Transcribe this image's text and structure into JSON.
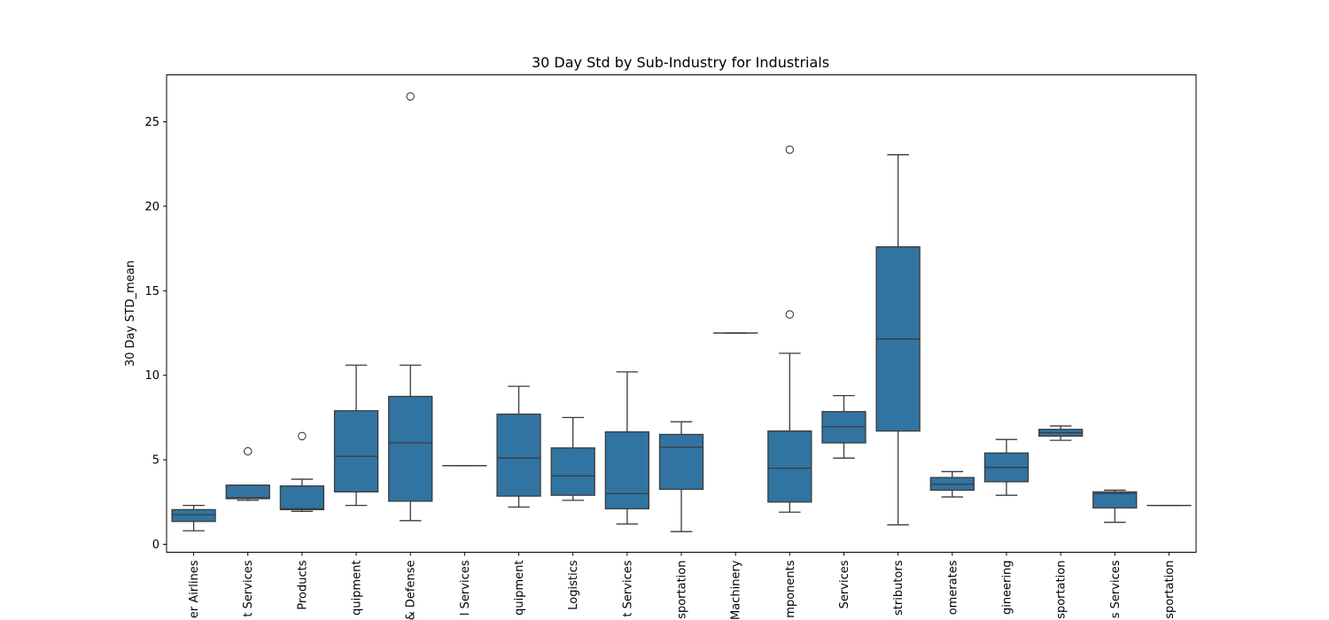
{
  "chart_data": {
    "type": "box",
    "title": "30 Day Std by Sub-Industry for Industrials",
    "xlabel": "",
    "ylabel": "30 Day STD_mean",
    "ylim": [
      -0.5,
      27.5
    ],
    "yticks": [
      0,
      5,
      10,
      15,
      20,
      25
    ],
    "grid": false,
    "legend": "none",
    "box_color": "#3274a1",
    "line_color": "#3b3b3b",
    "categories": [
      "er Airlines",
      "t Services",
      "Products",
      "quipment",
      "& Defense",
      "l Services",
      "quipment",
      "Logistics",
      "t Services",
      "sportation",
      "Machinery",
      "mponents",
      "Services",
      "stributors",
      "omerates",
      "gineering",
      "sportation",
      "s Services",
      "sportation"
    ],
    "boxes": [
      {
        "whislo": 0.8,
        "q1": 1.35,
        "med": 1.75,
        "q3": 2.05,
        "whishi": 2.3,
        "fliers": []
      },
      {
        "whislo": 2.6,
        "q1": 2.7,
        "med": 2.75,
        "q3": 3.5,
        "whishi": 3.5,
        "fliers": [
          5.5
        ]
      },
      {
        "whislo": 1.95,
        "q1": 2.05,
        "med": 2.1,
        "q3": 3.45,
        "whishi": 3.85,
        "fliers": [
          6.4
        ]
      },
      {
        "whislo": 2.3,
        "q1": 3.1,
        "med": 5.2,
        "q3": 7.9,
        "whishi": 10.6,
        "fliers": []
      },
      {
        "whislo": 1.4,
        "q1": 2.55,
        "med": 6.0,
        "q3": 8.75,
        "whishi": 10.6,
        "fliers": [
          26.5
        ]
      },
      {
        "whislo": 4.65,
        "q1": 4.65,
        "med": 4.65,
        "q3": 4.65,
        "whishi": 4.65,
        "fliers": []
      },
      {
        "whislo": 2.2,
        "q1": 2.85,
        "med": 5.1,
        "q3": 7.7,
        "whishi": 9.35,
        "fliers": []
      },
      {
        "whislo": 2.6,
        "q1": 2.9,
        "med": 4.05,
        "q3": 5.7,
        "whishi": 7.5,
        "fliers": []
      },
      {
        "whislo": 1.2,
        "q1": 2.1,
        "med": 3.0,
        "q3": 6.65,
        "whishi": 10.2,
        "fliers": []
      },
      {
        "whislo": 0.75,
        "q1": 3.25,
        "med": 5.75,
        "q3": 6.5,
        "whishi": 7.25,
        "fliers": []
      },
      {
        "whislo": 12.5,
        "q1": 12.5,
        "med": 12.5,
        "q3": 12.5,
        "whishi": 12.5,
        "fliers": []
      },
      {
        "whislo": 1.9,
        "q1": 2.5,
        "med": 4.5,
        "q3": 6.7,
        "whishi": 11.3,
        "fliers": [
          13.6,
          23.35
        ]
      },
      {
        "whislo": 5.1,
        "q1": 6.0,
        "med": 6.95,
        "q3": 7.85,
        "whishi": 8.8,
        "fliers": []
      },
      {
        "whislo": 1.15,
        "q1": 6.7,
        "med": 12.15,
        "q3": 17.6,
        "whishi": 23.05,
        "fliers": []
      },
      {
        "whislo": 2.8,
        "q1": 3.2,
        "med": 3.55,
        "q3": 3.95,
        "whishi": 4.3,
        "fliers": []
      },
      {
        "whislo": 2.9,
        "q1": 3.7,
        "med": 4.55,
        "q3": 5.4,
        "whishi": 6.2,
        "fliers": []
      },
      {
        "whislo": 6.15,
        "q1": 6.4,
        "med": 6.6,
        "q3": 6.8,
        "whishi": 7.0,
        "fliers": []
      },
      {
        "whislo": 1.3,
        "q1": 2.15,
        "med": 3.0,
        "q3": 3.1,
        "whishi": 3.2,
        "fliers": []
      },
      {
        "whislo": 2.3,
        "q1": 2.3,
        "med": 2.3,
        "q3": 2.3,
        "whishi": 2.3,
        "fliers": []
      }
    ]
  }
}
